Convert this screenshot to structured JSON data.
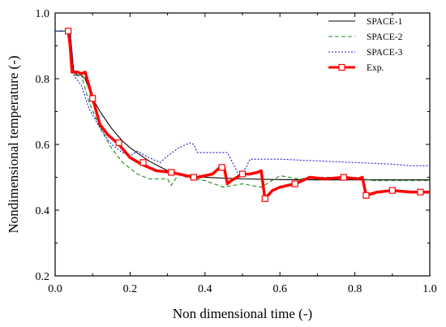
{
  "chart_data": {
    "type": "line",
    "title": "",
    "xlabel": "Non dimensional time (-)",
    "ylabel": "Nondimensional temperature (-)",
    "xlim": [
      0.0,
      1.0
    ],
    "ylim": [
      0.2,
      1.0
    ],
    "x_ticks": [
      "0.0",
      "0.2",
      "0.4",
      "0.6",
      "0.8",
      "1.0"
    ],
    "y_ticks": [
      "0.2",
      "0.4",
      "0.6",
      "0.8",
      "1.0"
    ],
    "legend_position": "top-right",
    "grid": false,
    "series": [
      {
        "name": "SPACE-1",
        "color": "#000000",
        "style": "solid",
        "x": [
          0.0,
          0.04,
          0.045,
          0.05,
          0.06,
          0.07,
          0.08,
          0.1,
          0.12,
          0.15,
          0.18,
          0.2,
          0.25,
          0.3,
          0.35,
          0.4,
          0.5,
          0.6,
          0.7,
          0.8,
          0.9,
          1.0
        ],
        "y": [
          0.945,
          0.945,
          0.88,
          0.82,
          0.81,
          0.81,
          0.8,
          0.74,
          0.7,
          0.65,
          0.61,
          0.59,
          0.55,
          0.52,
          0.505,
          0.5,
          0.495,
          0.493,
          0.492,
          0.492,
          0.492,
          0.492
        ]
      },
      {
        "name": "SPACE-2",
        "color": "#1f8a1f",
        "style": "dashed",
        "x": [
          0.0,
          0.04,
          0.045,
          0.05,
          0.07,
          0.09,
          0.12,
          0.15,
          0.18,
          0.22,
          0.25,
          0.3,
          0.31,
          0.33,
          0.35,
          0.4,
          0.45,
          0.5,
          0.55,
          0.6,
          0.65,
          0.7,
          0.8,
          0.85,
          0.9,
          1.0
        ],
        "y": [
          0.945,
          0.945,
          0.88,
          0.81,
          0.81,
          0.73,
          0.65,
          0.59,
          0.545,
          0.51,
          0.495,
          0.495,
          0.475,
          0.51,
          0.5,
          0.49,
          0.47,
          0.48,
          0.47,
          0.505,
          0.495,
          0.5,
          0.5,
          0.49,
          0.49,
          0.49
        ]
      },
      {
        "name": "SPACE-3",
        "color": "#1a1adc",
        "style": "dotted",
        "x": [
          0.0,
          0.04,
          0.045,
          0.05,
          0.07,
          0.09,
          0.12,
          0.15,
          0.18,
          0.2,
          0.22,
          0.25,
          0.28,
          0.3,
          0.33,
          0.36,
          0.37,
          0.38,
          0.4,
          0.46,
          0.48,
          0.49,
          0.51,
          0.52,
          0.6,
          0.7,
          0.8,
          0.9,
          0.95,
          1.0
        ],
        "y": [
          0.945,
          0.945,
          0.88,
          0.81,
          0.78,
          0.71,
          0.65,
          0.6,
          0.575,
          0.565,
          0.58,
          0.56,
          0.545,
          0.565,
          0.59,
          0.605,
          0.6,
          0.575,
          0.575,
          0.575,
          0.53,
          0.505,
          0.53,
          0.555,
          0.555,
          0.55,
          0.545,
          0.54,
          0.535,
          0.535
        ]
      },
      {
        "name": "Exp.",
        "color": "#ff0000",
        "style": "thick",
        "x": [
          0.035,
          0.04,
          0.045,
          0.05,
          0.06,
          0.07,
          0.08,
          0.09,
          0.1,
          0.12,
          0.14,
          0.17,
          0.2,
          0.23,
          0.27,
          0.31,
          0.35,
          0.38,
          0.4,
          0.42,
          0.44,
          0.45,
          0.46,
          0.47,
          0.5,
          0.52,
          0.54,
          0.55,
          0.56,
          0.58,
          0.6,
          0.64,
          0.68,
          0.72,
          0.77,
          0.81,
          0.82,
          0.83,
          0.86,
          0.9,
          0.95,
          1.0
        ],
        "y": [
          0.945,
          0.9,
          0.82,
          0.82,
          0.82,
          0.815,
          0.82,
          0.78,
          0.74,
          0.66,
          0.63,
          0.6,
          0.56,
          0.54,
          0.52,
          0.515,
          0.505,
          0.5,
          0.505,
          0.51,
          0.53,
          0.535,
          0.48,
          0.49,
          0.51,
          0.51,
          0.515,
          0.52,
          0.435,
          0.46,
          0.47,
          0.48,
          0.5,
          0.495,
          0.5,
          0.495,
          0.5,
          0.445,
          0.455,
          0.46,
          0.455,
          0.455
        ]
      }
    ],
    "exp_markers": {
      "x": [
        0.035,
        0.1,
        0.17,
        0.235,
        0.31,
        0.37,
        0.445,
        0.5,
        0.56,
        0.64,
        0.77,
        0.83,
        0.9,
        0.975
      ],
      "y": [
        0.945,
        0.74,
        0.605,
        0.545,
        0.515,
        0.5,
        0.53,
        0.51,
        0.435,
        0.48,
        0.5,
        0.445,
        0.46,
        0.455
      ]
    }
  }
}
